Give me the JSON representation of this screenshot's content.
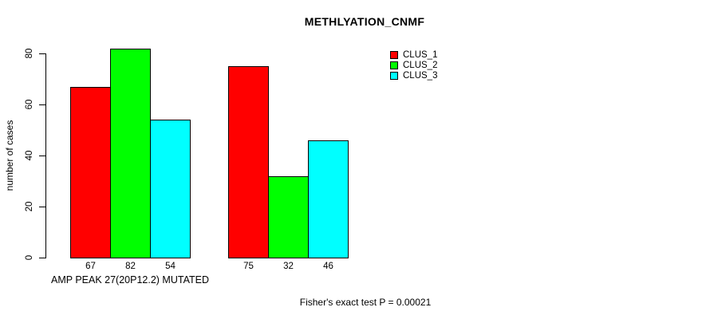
{
  "chart_data": {
    "type": "bar",
    "title": "METHLYATION_CNMF",
    "ylabel": "number of cases",
    "xlabel": "AMP PEAK 27(20P12.2) MUTATED",
    "footnote": "Fisher's exact test P = 0.00021",
    "ylim": [
      0,
      80
    ],
    "yticks": [
      0,
      20,
      40,
      60,
      80
    ],
    "grid": false,
    "bar_value_labels": true,
    "legend_position": "top-right",
    "legend_entries": [
      "CLUS_1",
      "CLUS_2",
      "CLUS_3"
    ],
    "colors": {
      "CLUS_1": "#ff0000",
      "CLUS_2": "#00ff00",
      "CLUS_3": "#00ffff"
    },
    "n_groups": 2,
    "series": [
      {
        "name": "CLUS_1",
        "color": "#ff0000",
        "values": [
          67,
          75
        ]
      },
      {
        "name": "CLUS_2",
        "color": "#00ff00",
        "values": [
          82,
          32
        ]
      },
      {
        "name": "CLUS_3",
        "color": "#00ffff",
        "values": [
          54,
          46
        ]
      }
    ]
  }
}
